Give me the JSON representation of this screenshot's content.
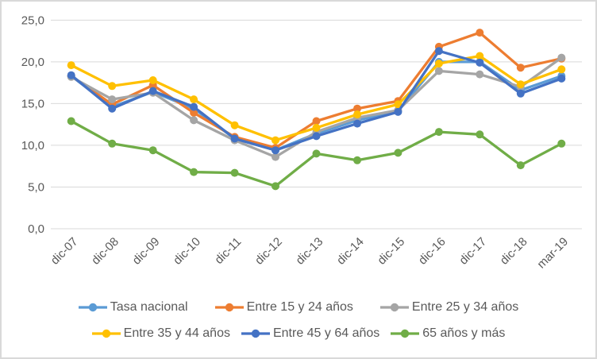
{
  "chart_data": {
    "type": "line",
    "categories": [
      "dic-07",
      "dic-08",
      "dic-09",
      "dic-10",
      "dic-11",
      "dic-12",
      "dic-13",
      "dic-14",
      "dic-15",
      "dic-16",
      "dic-17",
      "dic-18",
      "mar-19"
    ],
    "series": [
      {
        "name": "Tasa nacional",
        "color": "#5B9BD5",
        "values": [
          18.3,
          14.6,
          16.4,
          14.4,
          10.8,
          9.4,
          11.4,
          13.0,
          14.1,
          20.0,
          20.0,
          16.6,
          18.3
        ]
      },
      {
        "name": "Entre 15 y 24 años",
        "color": "#ED7D31",
        "values": [
          18.3,
          14.9,
          17.2,
          13.9,
          11.0,
          9.7,
          12.9,
          14.4,
          15.3,
          21.8,
          23.5,
          19.3,
          20.4
        ]
      },
      {
        "name": "Entre 25 y 34 años",
        "color": "#A5A5A5",
        "values": [
          18.2,
          15.5,
          16.3,
          13.0,
          10.6,
          8.6,
          11.6,
          13.3,
          14.2,
          18.9,
          18.5,
          17.0,
          20.5
        ]
      },
      {
        "name": "Entre 35 y 44 años",
        "color": "#FFC000",
        "values": [
          19.6,
          17.1,
          17.8,
          15.5,
          12.4,
          10.6,
          12.1,
          13.7,
          14.9,
          19.8,
          20.7,
          17.3,
          19.1
        ]
      },
      {
        "name": "Entre 45 y 64 años",
        "color": "#4472C4",
        "values": [
          18.4,
          14.4,
          16.5,
          14.6,
          10.8,
          9.4,
          11.1,
          12.6,
          14.0,
          21.3,
          19.9,
          16.2,
          18.0
        ]
      },
      {
        "name": "65 años y más",
        "color": "#70AD47",
        "values": [
          12.9,
          10.2,
          9.4,
          6.8,
          6.7,
          5.1,
          9.0,
          8.2,
          9.1,
          11.6,
          11.3,
          7.6,
          10.2
        ]
      }
    ],
    "y_ticks": [
      "0,0",
      "5,0",
      "10,0",
      "15,0",
      "20,0",
      "25,0"
    ],
    "y_tick_step": 5,
    "ylim": [
      0,
      25
    ],
    "xlabel": "",
    "ylabel": "",
    "grid": "horizontal",
    "gridline_color": "#D9D9D9",
    "axis_text_color": "#595959",
    "x_label_rotation": -45,
    "legend_position": "bottom",
    "legend_rows": [
      [
        0,
        1,
        2
      ],
      [
        3,
        4,
        5
      ]
    ]
  }
}
